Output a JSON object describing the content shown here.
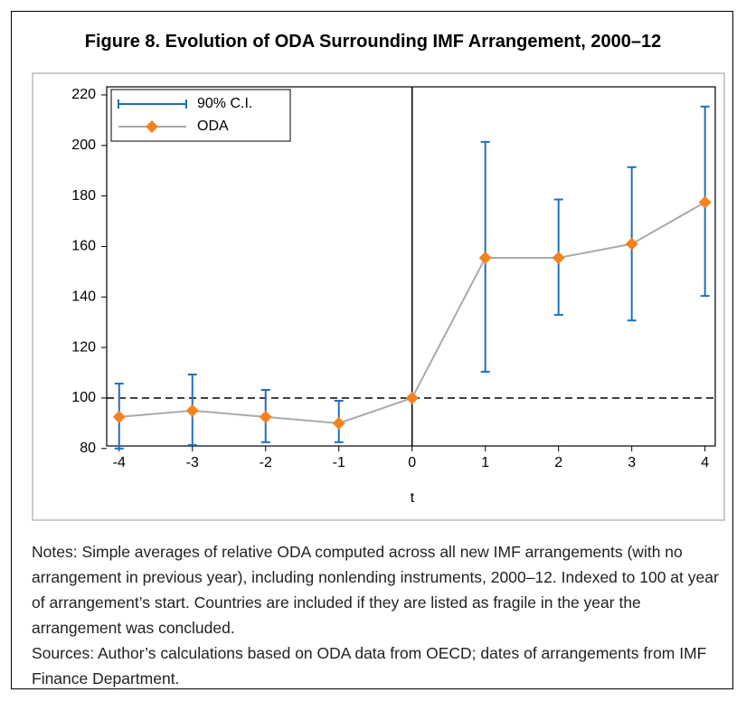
{
  "chart_data": {
    "type": "errorbar-line",
    "title": "Figure 8. Evolution of ODA Surrounding IMF Arrangement, 2000–12",
    "xlabel": "t",
    "x": [
      -4,
      -3,
      -2,
      -1,
      0,
      1,
      2,
      3,
      4
    ],
    "series": [
      {
        "name": "90% C.I.",
        "color": "#1f6fbf",
        "kind": "errorbar",
        "lower": [
          80,
          81.4,
          82.5,
          82.5,
          null,
          110.4,
          132.9,
          130.7,
          140.4
        ],
        "upper": [
          105.7,
          109.3,
          103.2,
          98.9,
          null,
          201.4,
          178.6,
          191.4,
          215.4
        ]
      },
      {
        "name": "ODA",
        "color": "#f58220",
        "line_color": "#aaaaaa",
        "kind": "line",
        "values": [
          92.5,
          95,
          92.5,
          90,
          100,
          155.5,
          155.5,
          161,
          177.5
        ]
      }
    ],
    "xlim": [
      -4.17,
      4.14
    ],
    "xticks": [
      -4,
      -3,
      -2,
      -1,
      0,
      1,
      2,
      3,
      4
    ],
    "ylim": [
      81,
      223.2
    ],
    "yticks": [
      80,
      100,
      120,
      140,
      160,
      180,
      200,
      220
    ],
    "hline": 100,
    "vline": 0,
    "legend": "upper left"
  },
  "notes": "Notes: Simple averages of relative ODA computed across all new IMF arrangements (with no arrangement in previous year), including nonlending instruments, 2000–12. Indexed to 100 at year of arrangement’s start. Countries are included if they are listed as fragile in the year the arrangement was concluded.",
  "sources": "Sources: Author’s calculations based on ODA data from OECD; dates of arrangements from IMF Finance Department."
}
